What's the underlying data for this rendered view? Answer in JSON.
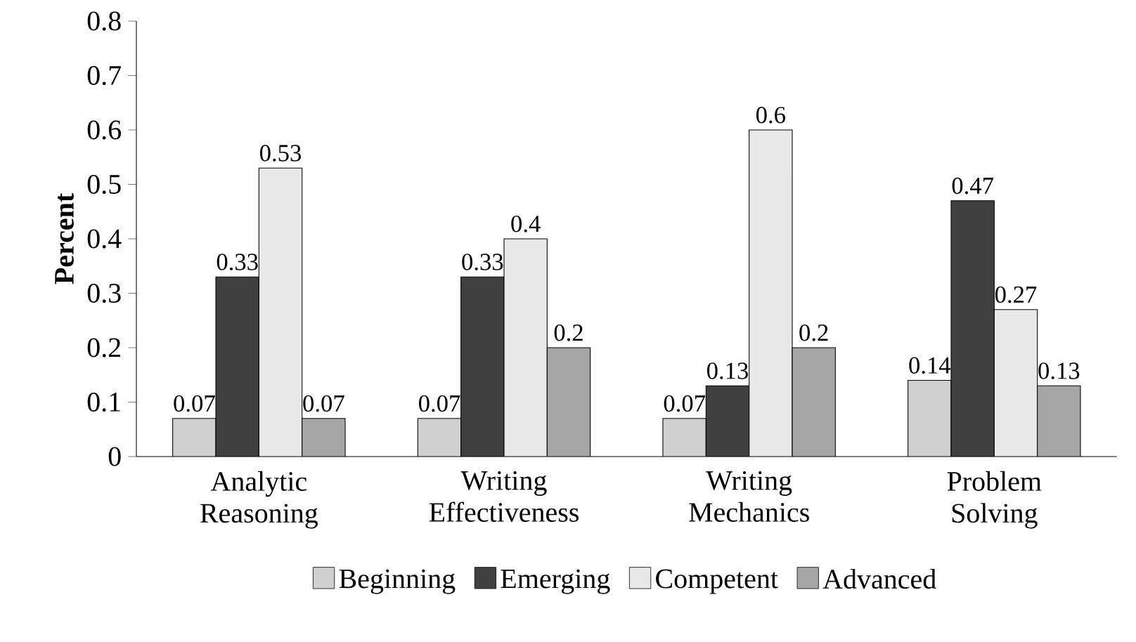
{
  "chart_data": {
    "type": "bar",
    "ylabel": "Percent",
    "categories": [
      "Analytic Reasoning",
      "Writing Effectiveness",
      "Writing Mechanics",
      "Problem Solving"
    ],
    "series": [
      {
        "name": "Beginning",
        "color": "#d0d0d0",
        "values": [
          0.07,
          0.07,
          0.07,
          0.14
        ]
      },
      {
        "name": "Emerging",
        "color": "#404040",
        "values": [
          0.33,
          0.33,
          0.13,
          0.47
        ]
      },
      {
        "name": "Competent",
        "color": "#e8e8e8",
        "values": [
          0.53,
          0.4,
          0.6,
          0.27
        ]
      },
      {
        "name": "Advanced",
        "color": "#a6a6a6",
        "values": [
          0.07,
          0.2,
          0.2,
          0.13
        ]
      }
    ],
    "ylim": [
      0,
      0.8
    ],
    "yticks": [
      0,
      0.1,
      0.2,
      0.3,
      0.4,
      0.5,
      0.6,
      0.7,
      0.8
    ],
    "data_labels": true,
    "legend": "bottom",
    "grid": false
  }
}
